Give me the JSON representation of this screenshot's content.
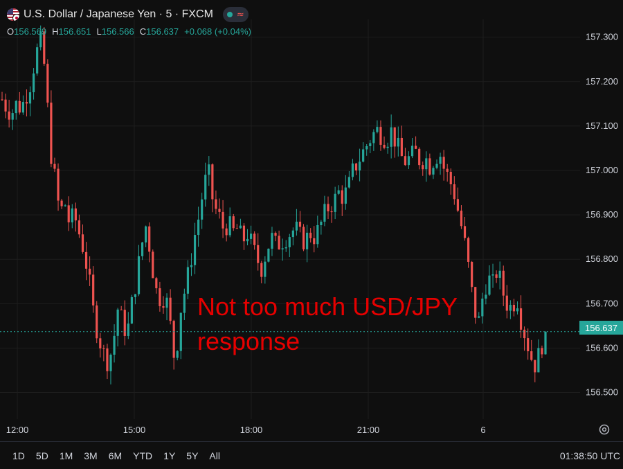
{
  "header": {
    "title": "U.S. Dollar / Japanese Yen · 5 · FXCM",
    "ohlc": {
      "o_label": "O",
      "o": "156.569",
      "h_label": "H",
      "h": "156.651",
      "l_label": "L",
      "l": "156.566",
      "c_label": "C",
      "c": "156.637",
      "change": "+0.068 (+0.04%)"
    },
    "status_icon": "live-dot-icon",
    "indicator_icon": "wave-icon"
  },
  "price_tag": "156.637",
  "annotation": {
    "line1": "Not too much USD/JPY",
    "line2": "response"
  },
  "colors": {
    "up": "#26a69a",
    "down": "#ef5350",
    "annotation": "#e60000",
    "background": "#0f0f0f",
    "grid": "#1e1e1e"
  },
  "ranges": [
    "1D",
    "5D",
    "1M",
    "3M",
    "6M",
    "YTD",
    "1Y",
    "5Y",
    "All"
  ],
  "clock": "01:38:50 UTC",
  "chart_data": {
    "type": "candlestick",
    "interval": "5 min",
    "ylim": [
      156.44,
      157.34
    ],
    "y_ticks": [
      "157.300",
      "157.200",
      "157.100",
      "157.000",
      "156.900",
      "156.800",
      "156.700",
      "156.600",
      "156.500"
    ],
    "x_ticks": [
      "12:00",
      "15:00",
      "18:00",
      "21:00",
      "6"
    ],
    "last_price": 156.637,
    "close_path": [
      157.16,
      157.14,
      157.13,
      157.15,
      157.14,
      157.17,
      157.2,
      157.26,
      157.29,
      157.22,
      157.05,
      156.98,
      156.9,
      156.93,
      156.88,
      156.9,
      156.86,
      156.82,
      156.76,
      156.68,
      156.63,
      156.59,
      156.57,
      156.6,
      156.69,
      156.66,
      156.63,
      156.7,
      156.76,
      156.83,
      156.88,
      156.8,
      156.73,
      156.71,
      156.72,
      156.65,
      156.56,
      156.68,
      156.73,
      156.78,
      156.85,
      156.9,
      156.97,
      156.99,
      156.92,
      156.9,
      156.87,
      156.88,
      156.86,
      156.87,
      156.84,
      156.86,
      156.83,
      156.8,
      156.78,
      156.82,
      156.85,
      156.83,
      156.84,
      156.85,
      156.86,
      156.87,
      156.85,
      156.84,
      156.86,
      156.85,
      156.87,
      156.9,
      156.92,
      156.93,
      156.95,
      156.94,
      156.96,
      157.0,
      157.02,
      157.04,
      157.06,
      157.08,
      157.09,
      157.08,
      157.07,
      157.09,
      157.06,
      157.03,
      157.02,
      157.03,
      157.04,
      157.02,
      157.03,
      157.01,
      157.03,
      157.04,
      157.0,
      156.98,
      156.95,
      156.9,
      156.85,
      156.78,
      156.7,
      156.65,
      156.72,
      156.76,
      156.74,
      156.78,
      156.73,
      156.7,
      156.69,
      156.72,
      156.66,
      156.62,
      156.58,
      156.56,
      156.6,
      156.637
    ]
  }
}
